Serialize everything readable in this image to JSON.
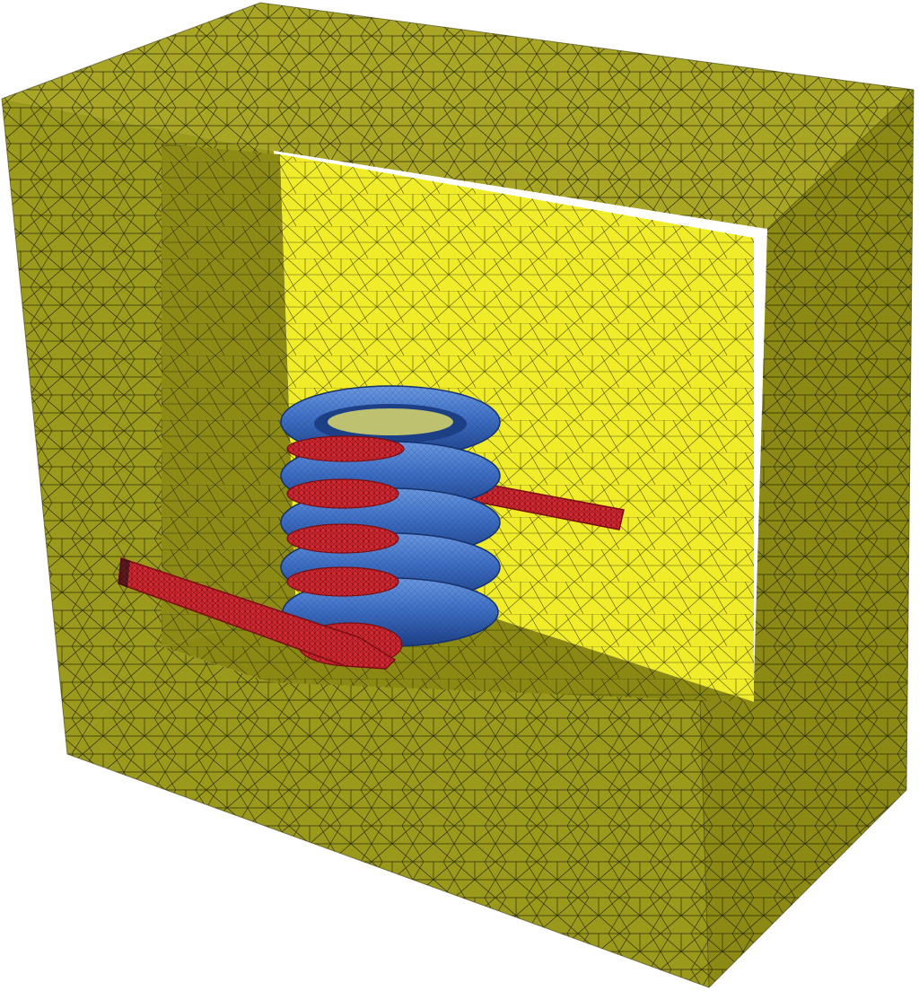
{
  "scene": {
    "colors": {
      "background": "#ffffff",
      "box_left_face": "#9c9a1c",
      "box_top_face": "#a9a626",
      "box_front_face": "#9b991b",
      "box_right_face": "#8c8a14",
      "cavity_back_wall": "#f0ec2a",
      "cavity_floor": "#8b8913",
      "cavity_left_wall": "#8d8b16",
      "cavity_ceiling": "#b8b42c",
      "mesh_line": "#1c1c08",
      "coil_blue": "#3e6fc4",
      "coil_blue_dark": "#1d3f86",
      "coil_blue_light": "#7aa6ea",
      "cut_red": "#d22a32",
      "cut_red_dark": "#7a0e14"
    }
  }
}
